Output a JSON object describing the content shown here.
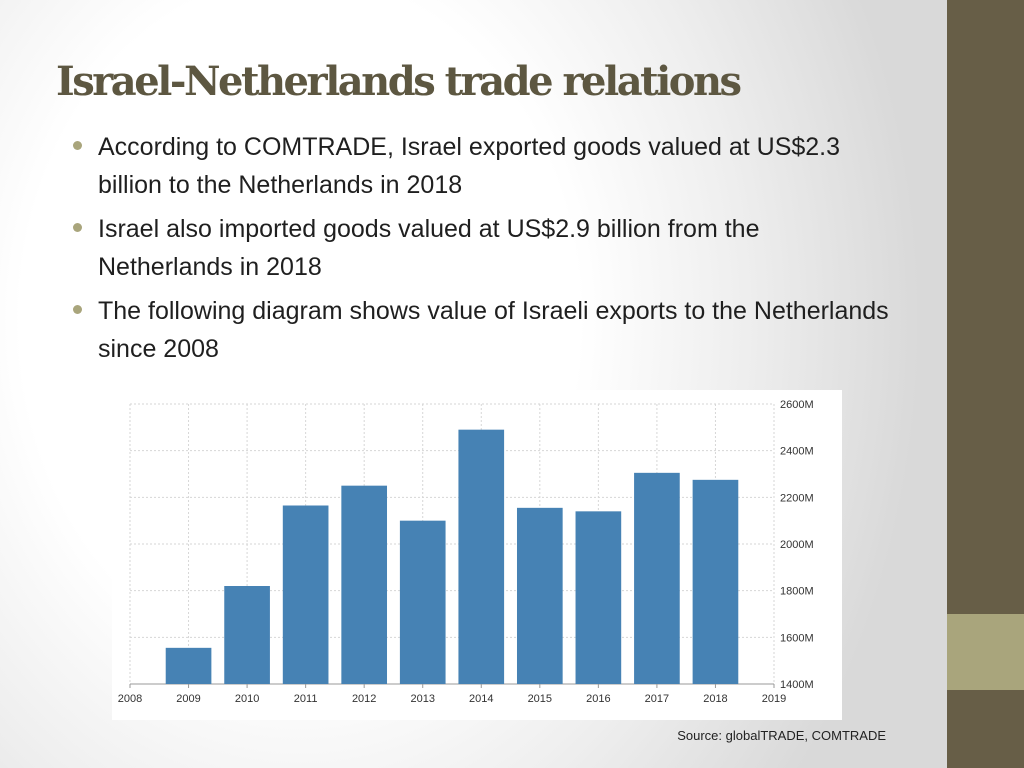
{
  "slide": {
    "title": "Israel-Netherlands trade relations",
    "bullets": [
      "According to COMTRADE, Israel exported goods valued at US$2.3 billion to the Netherlands in 2018",
      "Israel also imported goods valued at US$2.9 billion from the Netherlands in 2018",
      "The following diagram shows value of Israeli exports to the Netherlands since 2008"
    ],
    "source": "Source: globalTRADE, COMTRADE",
    "colors": {
      "accent_bar": "#675e47",
      "accent_block": "#a9a57c",
      "title": "#5d5741",
      "bar_fill": "#4682b4"
    }
  },
  "chart_data": {
    "type": "bar",
    "categories": [
      "2009",
      "2010",
      "2011",
      "2012",
      "2013",
      "2014",
      "2015",
      "2016",
      "2017",
      "2018"
    ],
    "values": [
      1555,
      1820,
      2165,
      2250,
      2100,
      2490,
      2155,
      2140,
      2305,
      2275
    ],
    "x_ticks": [
      "2008",
      "2009",
      "2010",
      "2011",
      "2012",
      "2013",
      "2014",
      "2015",
      "2016",
      "2017",
      "2018",
      "2019"
    ],
    "y_ticks": [
      "1400M",
      "1600M",
      "1800M",
      "2000M",
      "2200M",
      "2400M",
      "2600M"
    ],
    "ylim": [
      1400,
      2600
    ],
    "xlim": [
      2008,
      2019
    ],
    "grid": true,
    "y_axis_side": "right"
  }
}
